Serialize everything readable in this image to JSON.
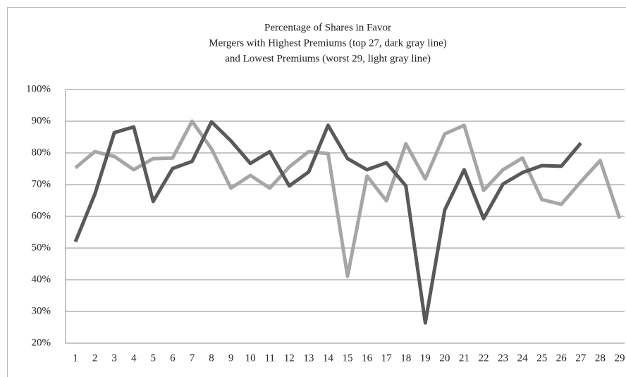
{
  "chart_data": {
    "type": "line",
    "title": "Percentage of Shares in Favor",
    "subtitle": [
      "Mergers with Highest Premiums (top 27, dark gray line)",
      "and Lowest Premiums (worst 29, light gray line)"
    ],
    "categories": [
      "1",
      "2",
      "3",
      "4",
      "5",
      "6",
      "7",
      "8",
      "9",
      "10",
      "11",
      "12",
      "13",
      "14",
      "15",
      "16",
      "17",
      "18",
      "19",
      "20",
      "21",
      "22",
      "23",
      "24",
      "25",
      "26",
      "27",
      "28",
      "29"
    ],
    "series": [
      {
        "color": "#595959",
        "values": [
          52,
          67,
          86.4,
          88.2,
          64.7,
          75.1,
          77.3,
          89.8,
          83.8,
          76.7,
          80.4,
          69.6,
          74,
          88.7,
          78.2,
          74.7,
          76.9,
          69.6,
          26.4,
          62,
          74.7,
          59.3,
          70.2,
          73.8,
          76,
          75.8,
          83.1,
          null,
          null
        ]
      },
      {
        "color": "#a6a6a6",
        "values": [
          75.3,
          80.4,
          78.9,
          74.7,
          78.2,
          78.4,
          90,
          81.3,
          68.9,
          72.9,
          68.9,
          75.6,
          80.4,
          79.8,
          41.1,
          72.7,
          64.9,
          82.9,
          71.8,
          86,
          88.7,
          68.2,
          74.7,
          78.4,
          65.3,
          63.8,
          70.9,
          77.6,
          59.3
        ]
      }
    ],
    "ylim": [
      20,
      100
    ],
    "yticks": [
      {
        "value": 20,
        "label": "20%"
      },
      {
        "value": 30,
        "label": "30%"
      },
      {
        "value": 40,
        "label": "40%"
      },
      {
        "value": 50,
        "label": "50%"
      },
      {
        "value": 60,
        "label": "60%"
      },
      {
        "value": 70,
        "label": "70%"
      },
      {
        "value": 80,
        "label": "80%"
      },
      {
        "value": 90,
        "label": "90%"
      },
      {
        "value": 100,
        "label": "100%"
      }
    ],
    "grid": true
  }
}
